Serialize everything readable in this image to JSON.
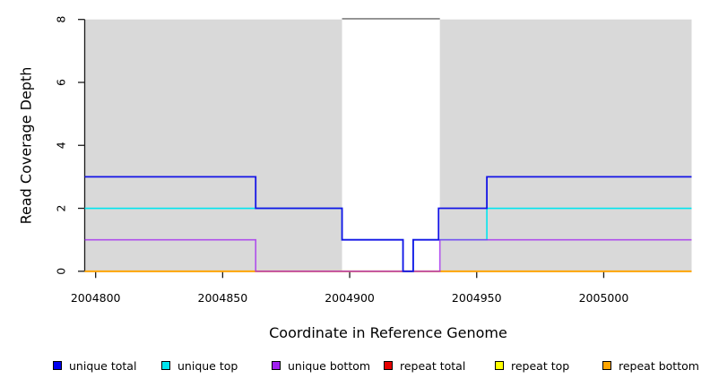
{
  "figure": {
    "background": "#ffffff",
    "panel_color": "#d9d9d9",
    "gap_top_border_color": "#7f7f7f",
    "axis_color": "#1a1a1a"
  },
  "chart_data": {
    "type": "line",
    "subtype": "step-coverage-plot",
    "title": "",
    "xlabel": "Coordinate in Reference Genome",
    "ylabel": "Read Coverage Depth",
    "xlim": [
      2004795.7,
      2005034.6
    ],
    "ylim": [
      0,
      8
    ],
    "x_ticks": [
      2004800,
      2004850,
      2004900,
      2004950,
      2005000
    ],
    "y_ticks": [
      0,
      2,
      4,
      6,
      8
    ],
    "grid": false,
    "legend_position": "bottom",
    "shaded_regions": [
      {
        "name": "shaded-region-left",
        "x0": 2004795.7,
        "x1": 2004897,
        "y0": 0,
        "y1": 8
      },
      {
        "name": "shaded-region-right",
        "x0": 2004935.5,
        "x1": 2005034.6,
        "y0": 0,
        "y1": 8
      }
    ],
    "gap_region": {
      "name": "unshaded-gap",
      "x0": 2004897,
      "x1": 2004935.5,
      "has_top_border": true
    },
    "series": [
      {
        "name": "unique total",
        "color": "#1414e6",
        "opacity": 1,
        "z": 6,
        "width": 1.8,
        "steps": [
          [
            2004795.7,
            3
          ],
          [
            2004863,
            2
          ],
          [
            2004897,
            1
          ],
          [
            2004921,
            0
          ],
          [
            2004925,
            1
          ],
          [
            2004935,
            2
          ],
          [
            2004954,
            3
          ]
        ]
      },
      {
        "name": "unique top",
        "color": "#00e5ee",
        "opacity": 1,
        "z": 4,
        "width": 1.6,
        "steps": [
          [
            2004795.7,
            2
          ],
          [
            2004897,
            1
          ],
          [
            2004921,
            0
          ],
          [
            2004925,
            1
          ],
          [
            2004954,
            2
          ]
        ]
      },
      {
        "name": "unique bottom",
        "color": "#a020f0",
        "opacity": 0.75,
        "z": 5,
        "width": 1.6,
        "steps": [
          [
            2004795.7,
            1
          ],
          [
            2004863,
            0
          ],
          [
            2004935.5,
            1
          ]
        ]
      },
      {
        "name": "repeat total",
        "color": "#e60000",
        "opacity": 1,
        "z": 1,
        "width": 1.6,
        "steps": [
          [
            2004795.7,
            0
          ]
        ]
      },
      {
        "name": "repeat top",
        "color": "#ffff00",
        "opacity": 1,
        "z": 2,
        "width": 1.6,
        "steps": [
          [
            2004795.7,
            0
          ]
        ]
      },
      {
        "name": "repeat bottom",
        "color": "#ffa500",
        "opacity": 1,
        "z": 3,
        "width": 1.8,
        "steps": [
          [
            2004795.7,
            0
          ]
        ]
      }
    ],
    "legend": [
      {
        "label": "unique total",
        "color": "#0000ee"
      },
      {
        "label": "unique top",
        "color": "#00e5ee"
      },
      {
        "label": "unique bottom",
        "color": "#a020f0"
      },
      {
        "label": "repeat total",
        "color": "#e60000"
      },
      {
        "label": "repeat top",
        "color": "#ffff00"
      },
      {
        "label": "repeat bottom",
        "color": "#ffa500"
      }
    ]
  }
}
